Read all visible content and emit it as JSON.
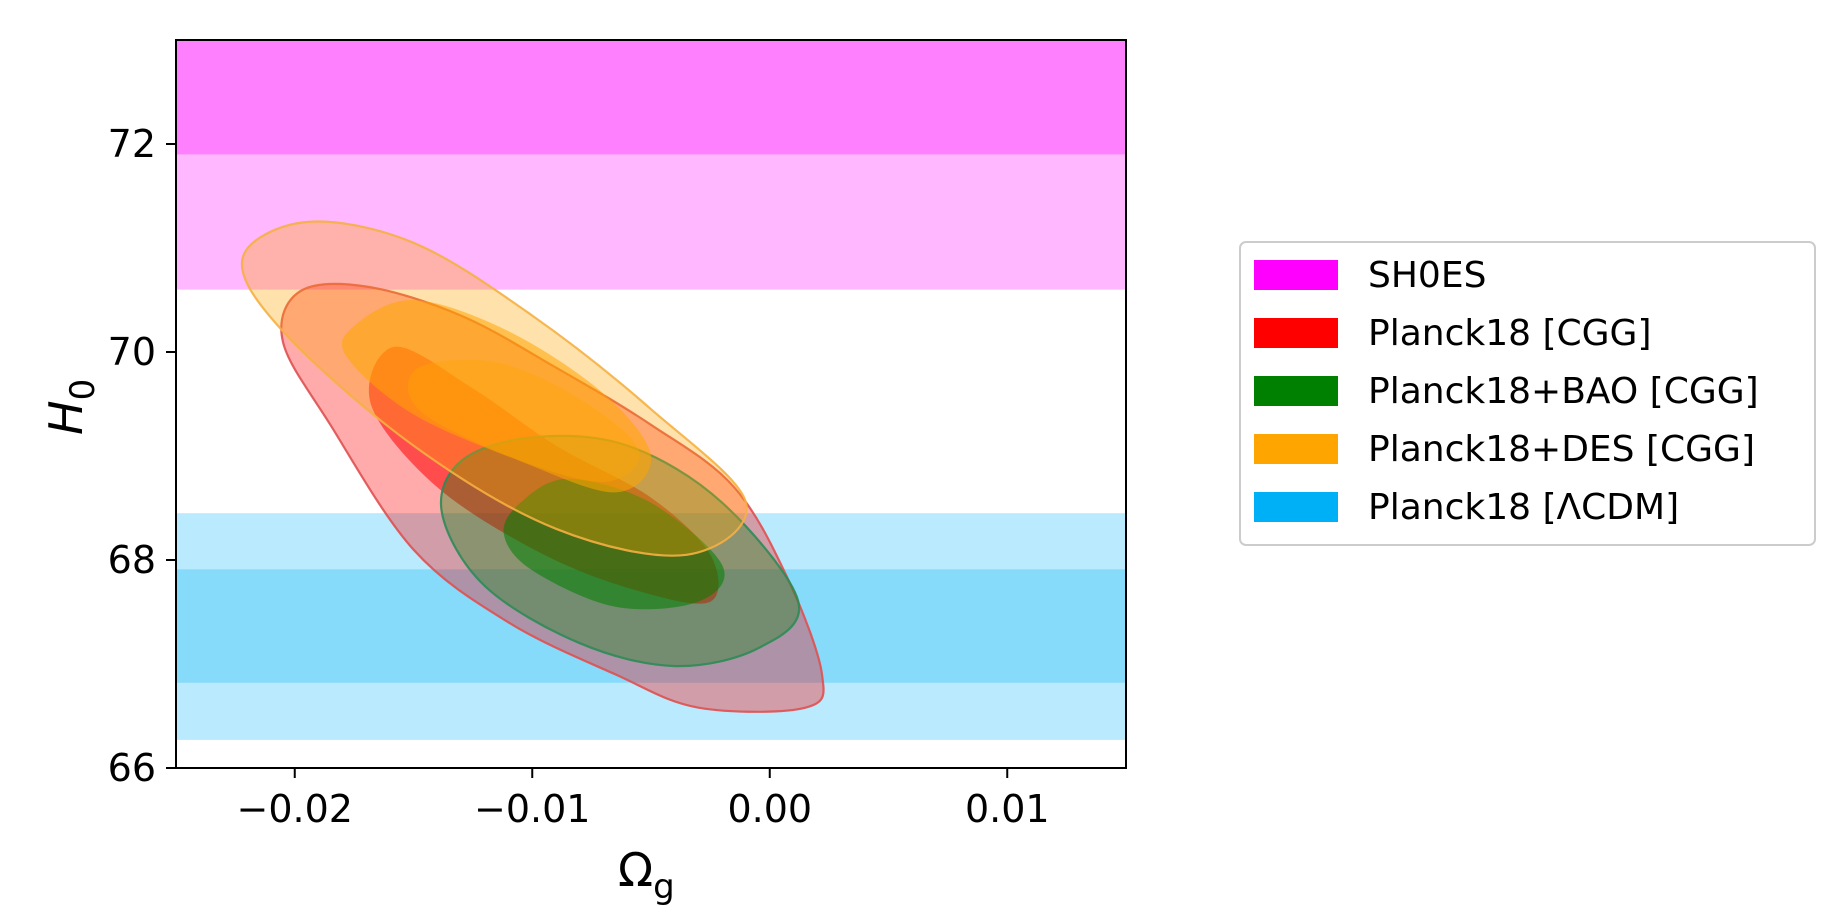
{
  "chart_data": {
    "type": "contour",
    "title": "",
    "xlabel_main": "Ω",
    "xlabel_sub": "g",
    "ylabel_main": "H",
    "ylabel_sub": "0",
    "xlim": [
      -0.025,
      0.015
    ],
    "ylim": [
      66.0,
      73.0
    ],
    "x_ticks": [
      -0.02,
      -0.01,
      0.0,
      0.01
    ],
    "x_tick_labels": [
      "−0.02",
      "−0.01",
      "0.00",
      "0.01"
    ],
    "y_ticks": [
      66,
      68,
      70,
      72
    ],
    "y_tick_labels": [
      "66",
      "68",
      "70",
      "72"
    ],
    "legend_position": "right",
    "grid": false,
    "bands": [
      {
        "series": "SH0ES",
        "color": "#ff00ff",
        "outer": [
          70.6,
          73.0
        ],
        "inner": [
          71.9,
          73.0
        ],
        "outer_opacity": 0.28,
        "inner_opacity": 0.3
      },
      {
        "series": "Planck18 [ΛCDM]",
        "color": "#00b0f6",
        "outer": [
          66.27,
          68.45
        ],
        "inner": [
          66.82,
          67.91
        ],
        "outer_opacity": 0.27,
        "inner_opacity": 0.28
      }
    ],
    "contours": [
      {
        "series": "Planck18 [CGG]",
        "color": "#ff0000",
        "edge": "#e05050",
        "outer": [
          [
            -0.0198,
            70.58
          ],
          [
            -0.017,
            70.63
          ],
          [
            -0.013,
            70.35
          ],
          [
            -0.009,
            69.85
          ],
          [
            -0.005,
            69.3
          ],
          [
            -0.0015,
            68.7
          ],
          [
            0.0008,
            67.8
          ],
          [
            0.0022,
            66.9
          ],
          [
            0.0015,
            66.58
          ],
          [
            -0.003,
            66.58
          ],
          [
            -0.0065,
            66.9
          ],
          [
            -0.011,
            67.4
          ],
          [
            -0.015,
            68.1
          ],
          [
            -0.0185,
            69.3
          ],
          [
            -0.0205,
            70.1
          ]
        ],
        "inner": [
          [
            -0.0158,
            70.05
          ],
          [
            -0.0125,
            69.65
          ],
          [
            -0.009,
            69.1
          ],
          [
            -0.005,
            68.6
          ],
          [
            -0.0025,
            68.05
          ],
          [
            -0.0025,
            67.6
          ],
          [
            -0.0055,
            67.7
          ],
          [
            -0.0095,
            68.05
          ],
          [
            -0.014,
            68.7
          ],
          [
            -0.0168,
            69.5
          ]
        ]
      },
      {
        "series": "Planck18+BAO [CGG]",
        "color": "#008000",
        "edge": "#2e8b57",
        "outer": [
          [
            -0.013,
            68.95
          ],
          [
            -0.01,
            69.18
          ],
          [
            -0.006,
            69.1
          ],
          [
            -0.002,
            68.55
          ],
          [
            0.0012,
            67.6
          ],
          [
            -0.0005,
            67.15
          ],
          [
            -0.004,
            66.98
          ],
          [
            -0.008,
            67.2
          ],
          [
            -0.012,
            67.75
          ],
          [
            -0.0138,
            68.45
          ]
        ],
        "inner": [
          [
            -0.0105,
            68.55
          ],
          [
            -0.0085,
            68.78
          ],
          [
            -0.005,
            68.55
          ],
          [
            -0.002,
            67.95
          ],
          [
            -0.003,
            67.6
          ],
          [
            -0.0065,
            67.55
          ],
          [
            -0.01,
            67.9
          ],
          [
            -0.0112,
            68.25
          ]
        ]
      },
      {
        "series": "Planck18+DES [CGG]",
        "color": "#ffa500",
        "edge": "#f5b041",
        "outer": [
          [
            -0.0222,
            70.9
          ],
          [
            -0.0195,
            71.25
          ],
          [
            -0.015,
            71.05
          ],
          [
            -0.01,
            70.35
          ],
          [
            -0.005,
            69.45
          ],
          [
            -0.001,
            68.55
          ],
          [
            -0.0035,
            68.05
          ],
          [
            -0.009,
            68.3
          ],
          [
            -0.015,
            69.1
          ],
          [
            -0.0205,
            70.2
          ]
        ],
        "inner": [
          [
            -0.0175,
            70.25
          ],
          [
            -0.015,
            70.5
          ],
          [
            -0.011,
            70.2
          ],
          [
            -0.007,
            69.6
          ],
          [
            -0.005,
            69.0
          ],
          [
            -0.0065,
            68.65
          ],
          [
            -0.0105,
            68.95
          ],
          [
            -0.015,
            69.4
          ],
          [
            -0.0178,
            69.95
          ]
        ],
        "core": [
          [
            -0.0148,
            69.85
          ],
          [
            -0.0115,
            69.9
          ],
          [
            -0.008,
            69.55
          ],
          [
            -0.0055,
            69.05
          ],
          [
            -0.007,
            68.75
          ],
          [
            -0.011,
            69.0
          ],
          [
            -0.0148,
            69.45
          ]
        ]
      }
    ],
    "legend": [
      {
        "label": "SH0ES",
        "color": "#ff00ff"
      },
      {
        "label": "Planck18 [CGG]",
        "color": "#ff0000"
      },
      {
        "label": "Planck18+BAO [CGG]",
        "color": "#008000"
      },
      {
        "label": "Planck18+DES [CGG]",
        "color": "#ffa500"
      },
      {
        "label": "Planck18 [ΛCDM]",
        "color": "#00b0f6"
      }
    ]
  }
}
